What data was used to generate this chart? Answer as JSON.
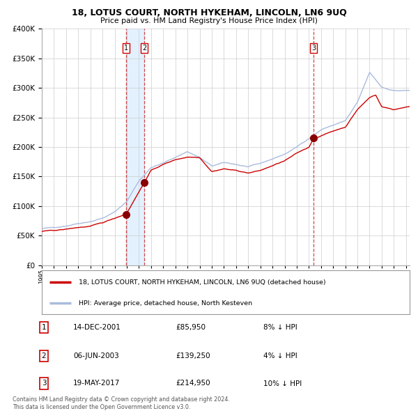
{
  "title": "18, LOTUS COURT, NORTH HYKEHAM, LINCOLN, LN6 9UQ",
  "subtitle": "Price paid vs. HM Land Registry's House Price Index (HPI)",
  "legend_label_red": "18, LOTUS COURT, NORTH HYKEHAM, LINCOLN, LN6 9UQ (detached house)",
  "legend_label_blue": "HPI: Average price, detached house, North Kesteven",
  "footer": "Contains HM Land Registry data © Crown copyright and database right 2024.\nThis data is licensed under the Open Government Licence v3.0.",
  "transactions": [
    {
      "num": 1,
      "date": "14-DEC-2001",
      "price": 85950,
      "pct": "8%",
      "dir": "↓",
      "year_x": 2001.96
    },
    {
      "num": 2,
      "date": "06-JUN-2003",
      "price": 139250,
      "pct": "4%",
      "dir": "↓",
      "year_x": 2003.43
    },
    {
      "num": 3,
      "date": "19-MAY-2017",
      "price": 214950,
      "pct": "10%",
      "dir": "↓",
      "year_x": 2017.38
    }
  ],
  "ylim": [
    0,
    400000
  ],
  "xlim_start": 1995.0,
  "xlim_end": 2025.3,
  "background_color": "#ffffff",
  "grid_color": "#cccccc",
  "red_line_color": "#cc0000",
  "blue_line_color": "#aabbdd",
  "vspan1_start": 2001.96,
  "vspan1_end": 2003.43
}
